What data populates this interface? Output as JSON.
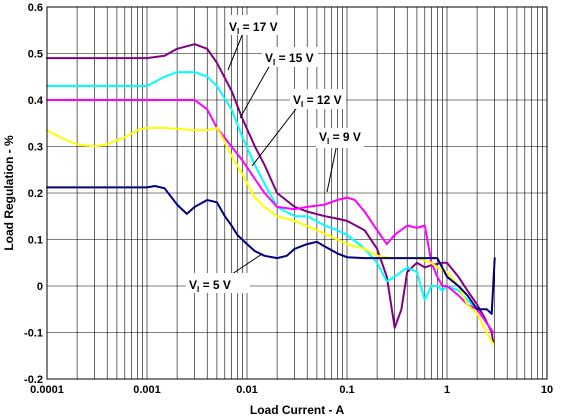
{
  "chart_data": {
    "type": "line",
    "title": "",
    "xlabel": "Load Current - A",
    "ylabel": "Load Regulation - %",
    "xscale": "log",
    "xlim": [
      0.0001,
      10
    ],
    "ylim": [
      -0.2,
      0.6
    ],
    "grid": true,
    "x_ticks": [
      "0.0001",
      "0.001",
      "0.01",
      "0.1",
      "1",
      "10"
    ],
    "y_ticks": [
      "0.6",
      "0.5",
      "0.4",
      "0.3",
      "0.2",
      "0.1",
      "0",
      "-0.1",
      "-0.2"
    ],
    "series": [
      {
        "name": "VI = 17 V",
        "color": "#800080",
        "x": [
          0.0001,
          0.0005,
          0.001,
          0.0015,
          0.002,
          0.003,
          0.004,
          0.005,
          0.007,
          0.009,
          0.012,
          0.015,
          0.02,
          0.03,
          0.04,
          0.06,
          0.08,
          0.1,
          0.15,
          0.2,
          0.25,
          0.3,
          0.35,
          0.4,
          0.5,
          0.6,
          0.7,
          0.9,
          1.0,
          1.3,
          1.6,
          2.0,
          2.4,
          2.8,
          2.9
        ],
        "y": [
          0.49,
          0.49,
          0.49,
          0.495,
          0.51,
          0.52,
          0.51,
          0.48,
          0.42,
          0.36,
          0.3,
          0.26,
          0.2,
          0.17,
          0.16,
          0.15,
          0.145,
          0.14,
          0.12,
          0.08,
          0.02,
          -0.09,
          -0.05,
          0.03,
          0.05,
          0.04,
          0.045,
          0.05,
          0.05,
          0.02,
          -0.01,
          -0.04,
          -0.07,
          -0.1,
          -0.12
        ]
      },
      {
        "name": "VI = 15 V",
        "color": "#00ffff",
        "x": [
          0.0001,
          0.0005,
          0.001,
          0.0015,
          0.002,
          0.003,
          0.004,
          0.005,
          0.007,
          0.009,
          0.012,
          0.015,
          0.02,
          0.03,
          0.04,
          0.06,
          0.08,
          0.1,
          0.15,
          0.2,
          0.25,
          0.3,
          0.4,
          0.5,
          0.6,
          0.7,
          0.8,
          0.9,
          1.0,
          1.3,
          1.6,
          2.0,
          2.5,
          2.9
        ],
        "y": [
          0.43,
          0.43,
          0.43,
          0.45,
          0.46,
          0.46,
          0.45,
          0.43,
          0.38,
          0.32,
          0.26,
          0.22,
          0.17,
          0.15,
          0.15,
          0.13,
          0.12,
          0.11,
          0.08,
          0.05,
          0.01,
          0.02,
          0.04,
          0.03,
          -0.03,
          0.0,
          0.0,
          -0.01,
          0.0,
          -0.01,
          -0.03,
          -0.05,
          -0.08,
          -0.1
        ]
      },
      {
        "name": "VI = 12 V",
        "color": "#ff00ff",
        "x": [
          0.0001,
          0.0005,
          0.001,
          0.0015,
          0.002,
          0.003,
          0.004,
          0.005,
          0.007,
          0.009,
          0.012,
          0.015,
          0.02,
          0.03,
          0.04,
          0.06,
          0.08,
          0.1,
          0.12,
          0.15,
          0.2,
          0.25,
          0.3,
          0.4,
          0.5,
          0.6,
          0.7,
          0.8,
          0.9,
          1.0,
          1.3,
          1.6,
          2.0,
          2.5,
          2.9
        ],
        "y": [
          0.4,
          0.4,
          0.4,
          0.4,
          0.4,
          0.4,
          0.38,
          0.34,
          0.3,
          0.27,
          0.23,
          0.2,
          0.17,
          0.165,
          0.17,
          0.175,
          0.185,
          0.19,
          0.185,
          0.16,
          0.12,
          0.09,
          0.11,
          0.13,
          0.125,
          0.13,
          0.05,
          0.02,
          0.0,
          0.0,
          -0.02,
          -0.04,
          -0.05,
          -0.08,
          -0.1
        ]
      },
      {
        "name": "VI = 9 V",
        "color": "#ffff00",
        "x": [
          0.0001,
          0.00015,
          0.0002,
          0.0003,
          0.0004,
          0.0006,
          0.0008,
          0.001,
          0.0015,
          0.002,
          0.003,
          0.004,
          0.005,
          0.006,
          0.007,
          0.009,
          0.012,
          0.015,
          0.02,
          0.03,
          0.05,
          0.08,
          0.1,
          0.15,
          0.2,
          0.3,
          0.4,
          0.5,
          0.6,
          0.7,
          0.8,
          1.0,
          1.3,
          1.6,
          2.0,
          2.5,
          2.9
        ],
        "y": [
          0.335,
          0.315,
          0.305,
          0.3,
          0.305,
          0.32,
          0.335,
          0.34,
          0.34,
          0.338,
          0.335,
          0.335,
          0.34,
          0.31,
          0.28,
          0.24,
          0.19,
          0.17,
          0.15,
          0.14,
          0.12,
          0.1,
          0.09,
          0.08,
          0.065,
          0.06,
          0.06,
          0.06,
          0.055,
          0.05,
          0.04,
          0.03,
          0.0,
          -0.04,
          -0.06,
          -0.1,
          -0.125
        ]
      },
      {
        "name": "VI = 5 V",
        "color": "#000080",
        "x": [
          0.0001,
          0.0005,
          0.001,
          0.0012,
          0.0015,
          0.002,
          0.0025,
          0.003,
          0.004,
          0.005,
          0.006,
          0.007,
          0.008,
          0.01,
          0.012,
          0.015,
          0.02,
          0.025,
          0.03,
          0.04,
          0.05,
          0.06,
          0.08,
          0.1,
          0.15,
          0.2,
          0.3,
          0.4,
          0.5,
          0.6,
          0.7,
          0.8,
          1.0,
          1.3,
          1.6,
          2.0,
          2.5,
          2.8,
          3.0
        ],
        "y": [
          0.212,
          0.212,
          0.212,
          0.215,
          0.21,
          0.175,
          0.155,
          0.17,
          0.185,
          0.18,
          0.15,
          0.13,
          0.11,
          0.09,
          0.075,
          0.065,
          0.06,
          0.065,
          0.08,
          0.09,
          0.095,
          0.085,
          0.07,
          0.062,
          0.06,
          0.06,
          0.06,
          0.06,
          0.06,
          0.06,
          0.06,
          0.06,
          0.02,
          0.0,
          -0.02,
          -0.05,
          -0.05,
          -0.06,
          0.06
        ]
      }
    ],
    "annotations": [
      {
        "main": "V",
        "sub": "I",
        "rest": " = 17 V"
      },
      {
        "main": "V",
        "sub": "I",
        "rest": " = 15 V"
      },
      {
        "main": "V",
        "sub": "I",
        "rest": " = 12 V"
      },
      {
        "main": "V",
        "sub": "I",
        "rest": " = 9 V"
      },
      {
        "main": "V",
        "sub": "I",
        "rest": " = 5 V"
      }
    ]
  }
}
